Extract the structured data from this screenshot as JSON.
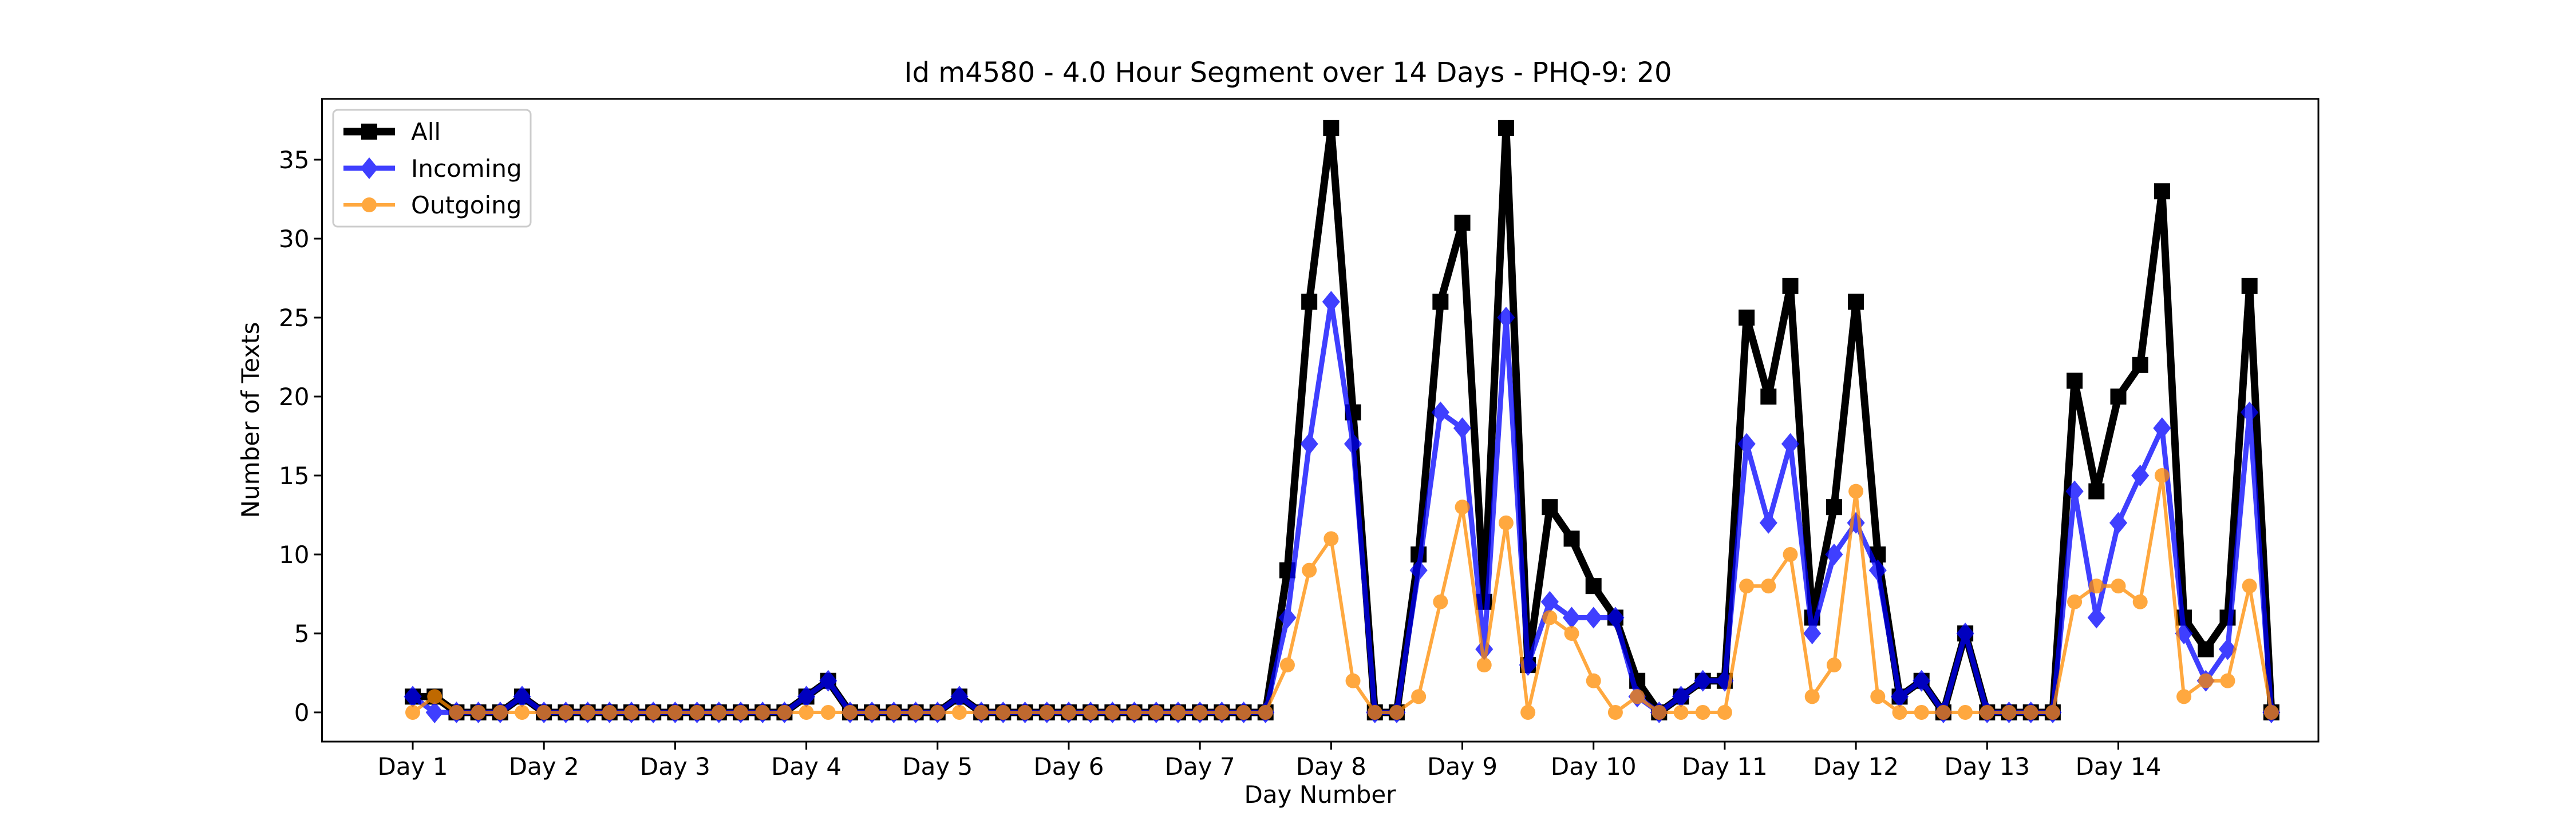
{
  "chart_data": {
    "type": "line",
    "title": "Id m4580 - 4.0 Hour Segment over 14 Days - PHQ-9: 20",
    "xlabel": "Day Number",
    "ylabel": "Number of Texts",
    "x_tick_labels": [
      "Day 1",
      "Day 2",
      "Day 3",
      "Day 4",
      "Day 5",
      "Day 6",
      "Day 7",
      "Day 8",
      "Day 9",
      "Day 10",
      "Day 11",
      "Day 12",
      "Day 13",
      "Day 14"
    ],
    "points_per_day": 6,
    "y_ticks": [
      0,
      5,
      10,
      15,
      20,
      25,
      30,
      35
    ],
    "ylim": [
      -1.85,
      38.85
    ],
    "xlim": [
      -4.15,
      87.15
    ],
    "grid": false,
    "legend_position": "upper left",
    "series": [
      {
        "name": "All",
        "color": "#000000",
        "marker": "square",
        "values": [
          1,
          1,
          0,
          0,
          0,
          1,
          0,
          0,
          0,
          0,
          0,
          0,
          0,
          0,
          0,
          0,
          0,
          0,
          1,
          2,
          0,
          0,
          0,
          0,
          0,
          1,
          0,
          0,
          0,
          0,
          0,
          0,
          0,
          0,
          0,
          0,
          0,
          0,
          0,
          0,
          9,
          26,
          37,
          19,
          0,
          0,
          10,
          26,
          31,
          7,
          37,
          3,
          13,
          11,
          8,
          6,
          2,
          0,
          1,
          2,
          2,
          25,
          20,
          27,
          6,
          13,
          26,
          10,
          1,
          2,
          0,
          5,
          0,
          0,
          0,
          0,
          21,
          14,
          20,
          22,
          33,
          6,
          4,
          6,
          27,
          0
        ]
      },
      {
        "name": "Incoming",
        "color": "#0000ff",
        "marker": "diamond",
        "values": [
          1,
          0,
          0,
          0,
          0,
          1,
          0,
          0,
          0,
          0,
          0,
          0,
          0,
          0,
          0,
          0,
          0,
          0,
          1,
          2,
          0,
          0,
          0,
          0,
          0,
          1,
          0,
          0,
          0,
          0,
          0,
          0,
          0,
          0,
          0,
          0,
          0,
          0,
          0,
          0,
          6,
          17,
          26,
          17,
          0,
          0,
          9,
          19,
          18,
          4,
          25,
          3,
          7,
          6,
          6,
          6,
          1,
          0,
          1,
          2,
          2,
          17,
          12,
          17,
          5,
          10,
          12,
          9,
          1,
          2,
          0,
          5,
          0,
          0,
          0,
          0,
          14,
          6,
          12,
          15,
          18,
          5,
          2,
          4,
          19,
          0
        ]
      },
      {
        "name": "Outgoing",
        "color": "#ff8c00",
        "marker": "circle",
        "values": [
          0,
          1,
          0,
          0,
          0,
          0,
          0,
          0,
          0,
          0,
          0,
          0,
          0,
          0,
          0,
          0,
          0,
          0,
          0,
          0,
          0,
          0,
          0,
          0,
          0,
          0,
          0,
          0,
          0,
          0,
          0,
          0,
          0,
          0,
          0,
          0,
          0,
          0,
          0,
          0,
          3,
          9,
          11,
          2,
          0,
          0,
          1,
          7,
          13,
          3,
          12,
          0,
          6,
          5,
          2,
          0,
          1,
          0,
          0,
          0,
          0,
          8,
          8,
          10,
          1,
          3,
          14,
          1,
          0,
          0,
          0,
          0,
          0,
          0,
          0,
          0,
          7,
          8,
          8,
          7,
          15,
          1,
          2,
          2,
          8,
          0
        ]
      }
    ]
  }
}
